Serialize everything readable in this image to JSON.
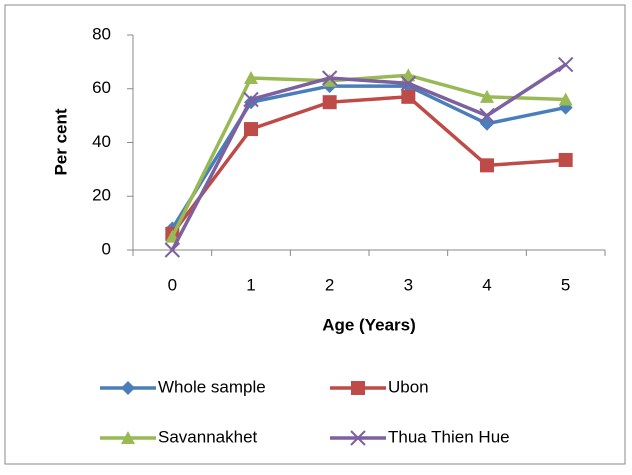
{
  "chart_data": {
    "type": "line",
    "x_label": "Age (Years)",
    "y_label": "Per cent",
    "categories": [
      "0",
      "1",
      "2",
      "3",
      "4",
      "5"
    ],
    "ylim": [
      0,
      80
    ],
    "yticks": [
      0,
      20,
      40,
      60,
      80
    ],
    "grid": false,
    "legend": "bottom",
    "series": [
      {
        "name": "Whole sample",
        "color": "#4a7ebb",
        "marker": "diamond",
        "values": [
          8,
          55,
          61,
          61,
          47,
          53
        ]
      },
      {
        "name": "Ubon",
        "color": "#be4b48",
        "marker": "square",
        "values": [
          6,
          45,
          55,
          57,
          31.5,
          33.5
        ]
      },
      {
        "name": "Savannakhet",
        "color": "#98b954",
        "marker": "triangle",
        "values": [
          5,
          64,
          63,
          65,
          57,
          56
        ]
      },
      {
        "name": "Thua Thien Hue",
        "color": "#7d60a0",
        "marker": "x",
        "values": [
          0,
          56,
          64,
          62,
          50,
          69
        ]
      }
    ]
  }
}
